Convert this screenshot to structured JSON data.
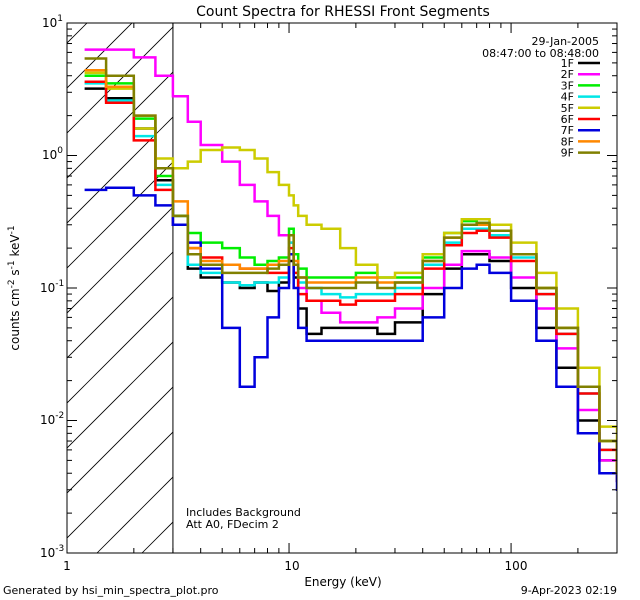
{
  "chart_data": {
    "type": "line",
    "title": "Count Spectra for RHESSI Front Segments",
    "xlabel": "Energy (keV)",
    "ylabel_parts": [
      "counts cm",
      "-2",
      " s",
      "-1",
      " keV",
      "-1"
    ],
    "xscale": "log",
    "yscale": "log",
    "xlim": [
      1.0,
      300.0
    ],
    "ylim": [
      0.001,
      10.0
    ],
    "x_tick_labels": [
      "1",
      "10",
      "100"
    ],
    "y_tick_labels": [
      {
        "base": "10",
        "exp": "-3"
      },
      {
        "base": "10",
        "exp": "-2"
      },
      {
        "base": "10",
        "exp": "-1"
      },
      {
        "base": "10",
        "exp": "0"
      },
      {
        "base": "10",
        "exp": "1"
      }
    ],
    "date": "29-Jan-2005",
    "time_range": "08:47:00 to 08:48:00",
    "annotations": [
      "Includes Background",
      "Att A0, FDecim 2"
    ],
    "shaded_region_below_keV": 3.0,
    "legend_location": "top-right",
    "series": [
      {
        "name": "1F",
        "color": "#000000",
        "x": [
          1.2,
          1.5,
          2.0,
          2.5,
          3.0,
          3.5,
          4.0,
          5.0,
          6.0,
          7.0,
          8.0,
          9.0,
          10.0,
          10.5,
          11.0,
          12.0,
          14.0,
          17.0,
          20.0,
          25.0,
          30.0,
          40.0,
          50.0,
          60.0,
          70.0,
          80.0,
          100.0,
          130.0,
          160.0,
          200.0,
          250.0,
          300.0
        ],
        "values": [
          3.2,
          2.7,
          1.6,
          0.65,
          0.35,
          0.14,
          0.12,
          0.11,
          0.1,
          0.11,
          0.095,
          0.11,
          0.16,
          0.12,
          0.07,
          0.045,
          0.05,
          0.05,
          0.05,
          0.045,
          0.055,
          0.09,
          0.14,
          0.18,
          0.18,
          0.16,
          0.1,
          0.05,
          0.025,
          0.01,
          0.005,
          0.0035
        ]
      },
      {
        "name": "2F",
        "color": "#ff00ff",
        "x": [
          1.2,
          1.5,
          2.0,
          2.5,
          3.0,
          3.5,
          4.0,
          5.0,
          6.0,
          7.0,
          8.0,
          9.0,
          10.0,
          10.5,
          11.0,
          12.0,
          14.0,
          17.0,
          20.0,
          25.0,
          30.0,
          40.0,
          50.0,
          60.0,
          70.0,
          80.0,
          100.0,
          130.0,
          160.0,
          200.0,
          250.0,
          300.0
        ],
        "values": [
          6.3,
          6.3,
          5.5,
          4.0,
          2.8,
          1.8,
          1.2,
          0.9,
          0.6,
          0.45,
          0.35,
          0.25,
          0.22,
          0.15,
          0.1,
          0.08,
          0.065,
          0.055,
          0.055,
          0.06,
          0.07,
          0.1,
          0.15,
          0.19,
          0.19,
          0.17,
          0.12,
          0.07,
          0.035,
          0.012,
          0.005,
          0.0035
        ]
      },
      {
        "name": "3F",
        "color": "#00ee00",
        "x": [
          1.2,
          1.5,
          2.0,
          2.5,
          3.0,
          3.5,
          4.0,
          5.0,
          6.0,
          7.0,
          8.0,
          9.0,
          10.0,
          10.5,
          11.0,
          12.0,
          14.0,
          17.0,
          20.0,
          25.0,
          30.0,
          40.0,
          50.0,
          60.0,
          70.0,
          80.0,
          100.0,
          130.0,
          160.0,
          200.0,
          250.0,
          300.0
        ],
        "values": [
          4.0,
          3.5,
          1.9,
          0.7,
          0.35,
          0.26,
          0.22,
          0.2,
          0.17,
          0.15,
          0.16,
          0.17,
          0.28,
          0.18,
          0.14,
          0.12,
          0.12,
          0.12,
          0.13,
          0.12,
          0.12,
          0.17,
          0.26,
          0.32,
          0.31,
          0.27,
          0.18,
          0.1,
          0.05,
          0.018,
          0.007,
          0.004
        ]
      },
      {
        "name": "4F",
        "color": "#00e6e6",
        "x": [
          1.2,
          1.5,
          2.0,
          2.5,
          3.0,
          3.5,
          4.0,
          5.0,
          6.0,
          7.0,
          8.0,
          9.0,
          10.0,
          10.5,
          11.0,
          12.0,
          14.0,
          17.0,
          20.0,
          25.0,
          30.0,
          40.0,
          50.0,
          60.0,
          70.0,
          80.0,
          100.0,
          130.0,
          160.0,
          200.0,
          250.0,
          300.0
        ],
        "values": [
          3.5,
          2.6,
          1.4,
          0.6,
          0.3,
          0.15,
          0.13,
          0.11,
          0.105,
          0.11,
          0.11,
          0.12,
          0.22,
          0.15,
          0.11,
          0.1,
          0.09,
          0.085,
          0.09,
          0.09,
          0.1,
          0.15,
          0.22,
          0.28,
          0.28,
          0.25,
          0.17,
          0.09,
          0.045,
          0.016,
          0.006,
          0.0035
        ]
      },
      {
        "name": "5F",
        "color": "#cccc00",
        "x": [
          1.2,
          1.5,
          2.0,
          2.5,
          3.0,
          3.5,
          4.0,
          5.0,
          6.0,
          7.0,
          8.0,
          9.0,
          10.0,
          10.5,
          11.0,
          12.0,
          14.0,
          17.0,
          20.0,
          25.0,
          30.0,
          40.0,
          50.0,
          60.0,
          70.0,
          80.0,
          100.0,
          130.0,
          160.0,
          200.0,
          250.0,
          300.0
        ],
        "values": [
          4.2,
          3.2,
          1.6,
          0.95,
          0.8,
          0.9,
          1.1,
          1.15,
          1.1,
          0.95,
          0.75,
          0.6,
          0.5,
          0.42,
          0.35,
          0.3,
          0.28,
          0.2,
          0.15,
          0.12,
          0.13,
          0.18,
          0.26,
          0.33,
          0.33,
          0.3,
          0.22,
          0.13,
          0.07,
          0.025,
          0.009,
          0.004
        ]
      },
      {
        "name": "6F",
        "color": "#ff0000",
        "x": [
          1.2,
          1.5,
          2.0,
          2.5,
          3.0,
          3.5,
          4.0,
          5.0,
          6.0,
          7.0,
          8.0,
          9.0,
          10.0,
          10.5,
          11.0,
          12.0,
          14.0,
          17.0,
          20.0,
          25.0,
          30.0,
          40.0,
          50.0,
          60.0,
          70.0,
          80.0,
          100.0,
          130.0,
          160.0,
          200.0,
          250.0,
          300.0
        ],
        "values": [
          3.6,
          2.5,
          1.3,
          0.55,
          0.3,
          0.2,
          0.17,
          0.15,
          0.14,
          0.14,
          0.13,
          0.13,
          0.2,
          0.13,
          0.09,
          0.08,
          0.08,
          0.075,
          0.08,
          0.08,
          0.09,
          0.14,
          0.21,
          0.26,
          0.27,
          0.24,
          0.16,
          0.09,
          0.045,
          0.016,
          0.006,
          0.0035
        ]
      },
      {
        "name": "7F",
        "color": "#0000dd",
        "x": [
          1.2,
          1.5,
          2.0,
          2.5,
          3.0,
          3.5,
          4.0,
          5.0,
          6.0,
          7.0,
          8.0,
          9.0,
          10.0,
          10.5,
          11.0,
          12.0,
          14.0,
          17.0,
          20.0,
          25.0,
          30.0,
          40.0,
          50.0,
          60.0,
          70.0,
          80.0,
          100.0,
          130.0,
          160.0,
          200.0,
          250.0,
          300.0
        ],
        "values": [
          0.55,
          0.57,
          0.5,
          0.42,
          0.3,
          0.22,
          0.14,
          0.05,
          0.018,
          0.03,
          0.06,
          0.1,
          0.18,
          0.1,
          0.05,
          0.04,
          0.04,
          0.04,
          0.04,
          0.04,
          0.04,
          0.06,
          0.1,
          0.14,
          0.15,
          0.13,
          0.08,
          0.04,
          0.018,
          0.008,
          0.004,
          0.003
        ]
      },
      {
        "name": "8F",
        "color": "#ff8800",
        "x": [
          1.2,
          1.5,
          2.0,
          2.5,
          3.0,
          3.5,
          4.0,
          5.0,
          6.0,
          7.0,
          8.0,
          9.0,
          10.0,
          10.5,
          11.0,
          12.0,
          14.0,
          17.0,
          20.0,
          25.0,
          30.0,
          40.0,
          50.0,
          60.0,
          70.0,
          80.0,
          100.0,
          130.0,
          160.0,
          200.0,
          250.0,
          300.0
        ],
        "values": [
          4.4,
          3.3,
          2.0,
          0.8,
          0.45,
          0.2,
          0.16,
          0.15,
          0.14,
          0.14,
          0.15,
          0.16,
          0.25,
          0.16,
          0.12,
          0.11,
          0.11,
          0.11,
          0.12,
          0.11,
          0.11,
          0.16,
          0.24,
          0.3,
          0.3,
          0.27,
          0.18,
          0.1,
          0.05,
          0.018,
          0.007,
          0.004
        ]
      },
      {
        "name": "9F",
        "color": "#808000",
        "x": [
          1.2,
          1.5,
          2.0,
          2.5,
          3.0,
          3.5,
          4.0,
          5.0,
          6.0,
          7.0,
          8.0,
          9.0,
          10.0,
          10.5,
          11.0,
          12.0,
          14.0,
          17.0,
          20.0,
          25.0,
          30.0,
          40.0,
          50.0,
          60.0,
          70.0,
          80.0,
          100.0,
          130.0,
          160.0,
          200.0,
          250.0,
          300.0
        ],
        "values": [
          5.4,
          4.0,
          2.0,
          0.8,
          0.35,
          0.18,
          0.15,
          0.13,
          0.13,
          0.13,
          0.14,
          0.15,
          0.25,
          0.15,
          0.12,
          0.1,
          0.1,
          0.1,
          0.11,
          0.1,
          0.11,
          0.16,
          0.24,
          0.3,
          0.31,
          0.27,
          0.18,
          0.1,
          0.05,
          0.018,
          0.007,
          0.004
        ]
      }
    ]
  },
  "footer": {
    "left": "Generated by hsi_min_spectra_plot.pro",
    "right": "9-Apr-2023 02:19"
  }
}
